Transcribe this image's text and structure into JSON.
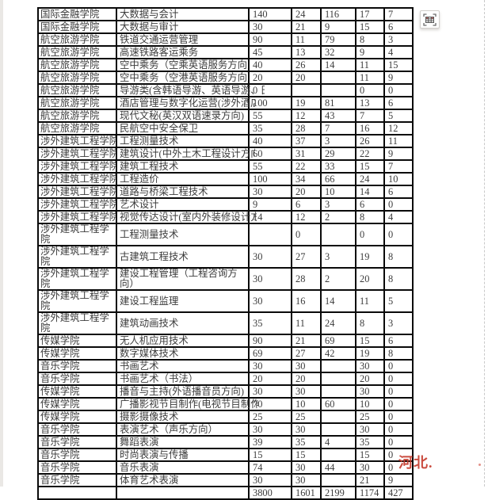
{
  "icons": {
    "toolbar_button": "table-recognition-icon"
  },
  "watermark": {
    "text": "河北.",
    "color": "#c5392b"
  },
  "table": {
    "rows": [
      {
        "college": "国际金融学院",
        "major": "大数据与会计",
        "values": [
          "140",
          "24",
          "116",
          "17",
          "7"
        ]
      },
      {
        "college": "国际金融学院",
        "major": "大数据与审计",
        "values": [
          "30",
          "21",
          "9",
          "15",
          "6"
        ]
      },
      {
        "college": "航空旅游学院",
        "major": "铁道交通运营管理",
        "values": [
          "90",
          "11",
          "79",
          "8",
          "3"
        ]
      },
      {
        "college": "航空旅游学院",
        "major": "高速铁路客运乘务",
        "values": [
          "45",
          "13",
          "32",
          "9",
          "4"
        ]
      },
      {
        "college": "航空旅游学院",
        "major": "空中乘务（空乘英语服务方向）",
        "values": [
          "40",
          "26",
          "14",
          "11",
          "15"
        ]
      },
      {
        "college": "航空旅游学院",
        "major": "空中乘务（空港英语服务方向）",
        "values": [
          "20",
          "20",
          "",
          "11",
          "9"
        ]
      },
      {
        "college": "航空旅游学院",
        "major": "导游类(含韩语导游、英语导游、日语导游方向)",
        "values": [
          "0",
          "",
          "",
          "0",
          "0"
        ]
      },
      {
        "college": "航空旅游学院",
        "major": "酒店管理与数字化运营(涉外酒店方向)",
        "values": [
          "100",
          "19",
          "81",
          "13",
          "6"
        ]
      },
      {
        "college": "航空旅游学院",
        "major": "现代文秘(英汉双语速录方向)",
        "values": [
          "55",
          "12",
          "43",
          "7",
          "5"
        ]
      },
      {
        "college": "航空旅游学院",
        "major": "民航空中安全保卫",
        "values": [
          "35",
          "28",
          "7",
          "16",
          "12"
        ]
      },
      {
        "college": "涉外建筑工程学院",
        "major": "工程测量技术",
        "values": [
          "40",
          "37",
          "3",
          "26",
          "11"
        ]
      },
      {
        "college": "涉外建筑工程学院",
        "major": "建筑设计(中外土木工程设计方向)",
        "values": [
          "60",
          "31",
          "29",
          "22",
          "9"
        ]
      },
      {
        "college": "涉外建筑工程学院",
        "major": "建筑工程技术",
        "values": [
          "55",
          "22",
          "33",
          "15",
          "7"
        ]
      },
      {
        "college": "涉外建筑工程学院",
        "major": "工程造价",
        "values": [
          "100",
          "34",
          "66",
          "24",
          "10"
        ]
      },
      {
        "college": "涉外建筑工程学院",
        "major": "道路与桥梁工程技术",
        "values": [
          "30",
          "20",
          "10",
          "14",
          "6"
        ]
      },
      {
        "college": "涉外建筑工程学院",
        "major": "艺术设计",
        "values": [
          "9",
          "6",
          "3",
          "6",
          "0"
        ]
      },
      {
        "college": "涉外建筑工程学院",
        "major": "视觉传达设计(室内外装修设计方向)",
        "values": [
          "14",
          "12",
          "2",
          "8",
          "4"
        ]
      },
      {
        "college": "涉外建筑工程学院",
        "major": "工程测量技术",
        "values": [
          "",
          "0",
          "",
          "0",
          "0"
        ]
      },
      {
        "college": "涉外建筑工程学院",
        "major": "古建筑工程技术",
        "values": [
          "30",
          "27",
          "3",
          "19",
          "8"
        ]
      },
      {
        "college": "涉外建筑工程学院",
        "major": "建设工程管理（工程咨询方向）",
        "values": [
          "30",
          "28",
          "2",
          "20",
          "8"
        ]
      },
      {
        "college": "涉外建筑工程学院",
        "major": "建设工程监理",
        "values": [
          "30",
          "16",
          "14",
          "11",
          "5"
        ]
      },
      {
        "college": "涉外建筑工程学院",
        "major": "建筑动画技术",
        "values": [
          "35",
          "11",
          "24",
          "8",
          "3"
        ]
      },
      {
        "college": "传媒学院",
        "major": "无人机应用技术",
        "values": [
          "90",
          "21",
          "69",
          "15",
          "6"
        ]
      },
      {
        "college": "传媒学院",
        "major": "数字媒体技术",
        "values": [
          "69",
          "27",
          "42",
          "19",
          "8"
        ]
      },
      {
        "college": "音乐学院",
        "major": "书画艺术",
        "values": [
          "30",
          "30",
          "",
          "30",
          "0"
        ]
      },
      {
        "college": "音乐学院",
        "major": "书画艺术（书法）",
        "values": [
          "20",
          "20",
          "",
          "20",
          "0"
        ]
      },
      {
        "college": "传媒学院",
        "major": "播音与主持(外语播音员方向)",
        "values": [
          "30",
          "30",
          "",
          "30",
          "0"
        ]
      },
      {
        "college": "传媒学院",
        "major": "广播影视节目制作(电视节目制作方向)",
        "values": [
          "70",
          "10",
          "60",
          "10",
          "0"
        ]
      },
      {
        "college": "传媒学院",
        "major": "摄影摄像技术",
        "values": [
          "25",
          "25",
          "",
          "25",
          "0"
        ]
      },
      {
        "college": "音乐学院",
        "major": "表演艺术（声乐方向）",
        "values": [
          "30",
          "30",
          "",
          "30",
          "0"
        ]
      },
      {
        "college": "音乐学院",
        "major": "舞蹈表演",
        "values": [
          "39",
          "35",
          "4",
          "35",
          "0"
        ]
      },
      {
        "college": "音乐学院",
        "major": "时尚表演与传播",
        "values": [
          "15",
          "15",
          "",
          "15",
          "0"
        ]
      },
      {
        "college": "音乐学院",
        "major": "音乐表演",
        "values": [
          "74",
          "30",
          "44",
          "30",
          "0"
        ]
      },
      {
        "college": "音乐学院",
        "major": "体育艺术表演",
        "values": [
          "30",
          "30",
          "",
          "21",
          "9"
        ]
      }
    ],
    "totals": {
      "college": "",
      "major": "",
      "values": [
        "3800",
        "1601",
        "2199",
        "1174",
        "427"
      ]
    }
  }
}
